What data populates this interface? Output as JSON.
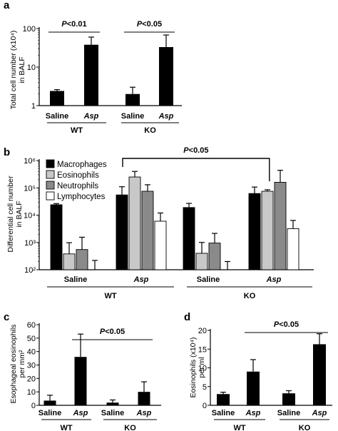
{
  "chart_data": [
    {
      "panel": "a",
      "type": "bar",
      "yscale": "log",
      "ylim": [
        1,
        100
      ],
      "yticks": [
        "1",
        "10",
        "100"
      ],
      "ylabel": [
        "Total cell number (x10⁴)",
        "in BALF"
      ],
      "categories": [
        "Saline",
        "Asp",
        "Saline",
        "Asp"
      ],
      "groups": [
        "WT",
        "KO"
      ],
      "values": [
        2.4,
        38,
        2.0,
        33
      ],
      "errors": [
        0.2,
        22,
        1.0,
        35
      ],
      "significance": [
        {
          "label": "P<0.01",
          "from": 0,
          "to": 1
        },
        {
          "label": "P<0.05",
          "from": 2,
          "to": 3
        }
      ]
    },
    {
      "panel": "b",
      "type": "bar",
      "yscale": "log",
      "ylim": [
        100,
        1000000
      ],
      "yticks": [
        "10²",
        "10³",
        "10⁴",
        "10⁵",
        "10⁶"
      ],
      "ylabel": [
        "Differential cell number",
        "in BALF"
      ],
      "categories": [
        "Saline",
        "Asp",
        "Saline",
        "Asp"
      ],
      "groups": [
        "WT",
        "KO"
      ],
      "legend_position": "top-left",
      "series": [
        {
          "name": "Macrophages",
          "color": "#000000",
          "values": [
            24000,
            55000,
            19000,
            62000
          ],
          "errors": [
            2500,
            55000,
            8000,
            45000
          ]
        },
        {
          "name": "Eosinophils",
          "color": "#c8c8c8",
          "values": [
            380,
            250000,
            400,
            75000
          ],
          "errors": [
            600,
            150000,
            600,
            10000
          ]
        },
        {
          "name": "Neutrophils",
          "color": "#8a8a8a",
          "values": [
            550,
            75000,
            950,
            160000
          ],
          "errors": [
            1000,
            55000,
            1200,
            280000
          ]
        },
        {
          "name": "Lymphocytes",
          "color": "#ffffff",
          "values": [
            100,
            6000,
            100,
            3200
          ],
          "errors": [
            120,
            6000,
            100,
            3200
          ]
        }
      ],
      "significance": [
        {
          "label": "P<0.05",
          "from": 1,
          "to": 3
        }
      ]
    },
    {
      "panel": "c",
      "type": "bar",
      "ylim": [
        0,
        60
      ],
      "yticks": [
        "0",
        "10",
        "20",
        "30",
        "40",
        "50",
        "60"
      ],
      "ylabel": [
        "Esophageal eosinophils",
        "per mm²"
      ],
      "categories": [
        "Saline",
        "Asp",
        "Saline",
        "Asp"
      ],
      "groups": [
        "WT",
        "KO"
      ],
      "values": [
        3.5,
        36,
        2.0,
        10
      ],
      "errors": [
        4,
        17,
        2,
        7.5
      ],
      "significance": [
        {
          "label": "P<0.05",
          "from": 1,
          "to": 3
        }
      ]
    },
    {
      "panel": "d",
      "type": "bar",
      "ylim": [
        0,
        20
      ],
      "yticks": [
        "0",
        "5",
        "10",
        "15",
        "20"
      ],
      "ylabel": [
        "Eosinophils (x10⁴)",
        "per ml"
      ],
      "categories": [
        "Saline",
        "Asp",
        "Saline",
        "Asp"
      ],
      "groups": [
        "WT",
        "KO"
      ],
      "values": [
        3.0,
        9.0,
        3.2,
        16.3
      ],
      "errors": [
        0.5,
        3.2,
        0.7,
        2.8
      ],
      "significance": [
        {
          "label": "P<0.05",
          "from": 1,
          "to": 3
        }
      ]
    }
  ]
}
